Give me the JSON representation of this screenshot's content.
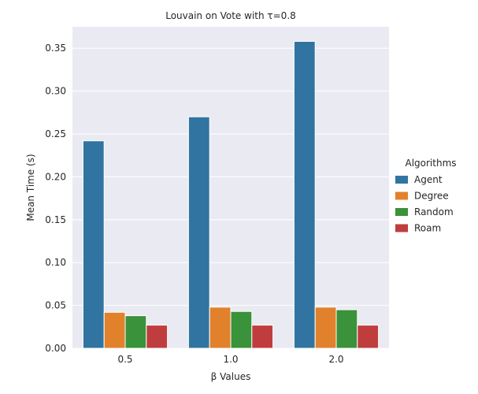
{
  "chart_data": {
    "type": "bar",
    "title": "Louvain on Vote with τ=0.8",
    "xlabel": "β Values",
    "ylabel": "Mean Time (s)",
    "categories": [
      "0.5",
      "1.0",
      "2.0"
    ],
    "ylim": [
      0,
      0.375
    ],
    "yticks": [
      "0.00",
      "0.05",
      "0.10",
      "0.15",
      "0.20",
      "0.25",
      "0.30",
      "0.35"
    ],
    "grid": true,
    "legend_title": "Algorithms",
    "legend_placement": "right",
    "series": [
      {
        "name": "Agent",
        "color": "#3274a1",
        "values": [
          0.242,
          0.27,
          0.358
        ]
      },
      {
        "name": "Degree",
        "color": "#e1812c",
        "values": [
          0.042,
          0.048,
          0.048
        ]
      },
      {
        "name": "Random",
        "color": "#3a923a",
        "values": [
          0.038,
          0.043,
          0.045
        ]
      },
      {
        "name": "Roam",
        "color": "#c03d3e",
        "values": [
          0.027,
          0.027,
          0.027
        ]
      }
    ]
  }
}
